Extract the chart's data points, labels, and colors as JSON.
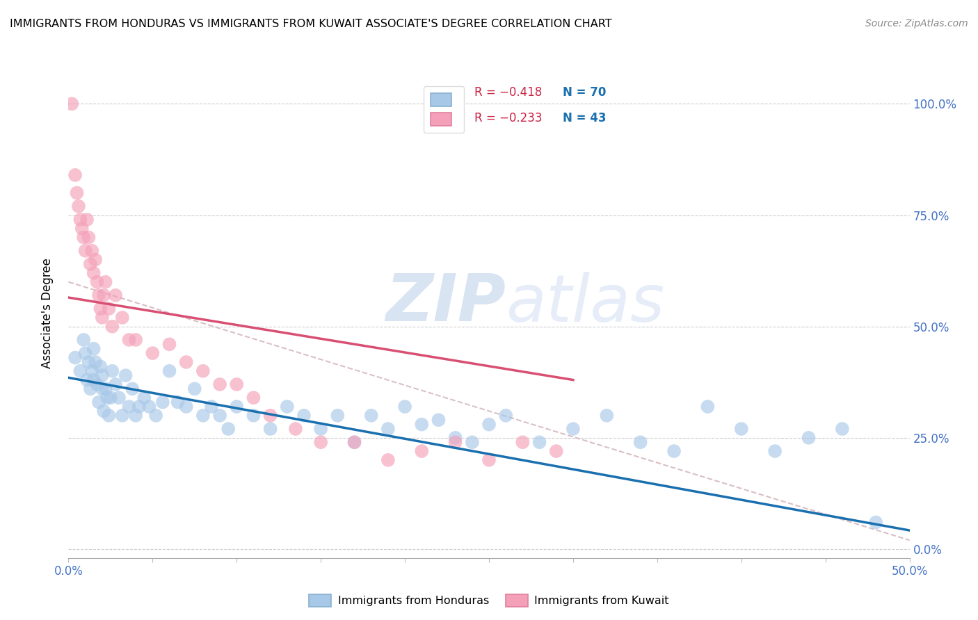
{
  "title": "IMMIGRANTS FROM HONDURAS VS IMMIGRANTS FROM KUWAIT ASSOCIATE'S DEGREE CORRELATION CHART",
  "source": "Source: ZipAtlas.com",
  "ylabel": "Associate's Degree",
  "xlim": [
    0.0,
    0.5
  ],
  "ylim": [
    -0.02,
    1.08
  ],
  "watermark_zip": "ZIP",
  "watermark_atlas": "atlas",
  "honduras_color": "#a8c8e8",
  "kuwait_color": "#f4a0b8",
  "honduras_trend_color": "#1a6faf",
  "kuwait_trend_color": "#d94f72",
  "overall_trend_color": "#d0b0b8",
  "honduras_scatter_x": [
    0.004,
    0.007,
    0.009,
    0.01,
    0.011,
    0.012,
    0.013,
    0.014,
    0.015,
    0.015,
    0.016,
    0.017,
    0.018,
    0.019,
    0.02,
    0.02,
    0.021,
    0.022,
    0.023,
    0.024,
    0.025,
    0.026,
    0.028,
    0.03,
    0.032,
    0.034,
    0.036,
    0.038,
    0.04,
    0.042,
    0.045,
    0.048,
    0.052,
    0.056,
    0.06,
    0.065,
    0.07,
    0.075,
    0.08,
    0.085,
    0.09,
    0.095,
    0.1,
    0.11,
    0.12,
    0.13,
    0.14,
    0.15,
    0.16,
    0.17,
    0.18,
    0.19,
    0.2,
    0.21,
    0.22,
    0.23,
    0.24,
    0.25,
    0.26,
    0.28,
    0.3,
    0.32,
    0.34,
    0.36,
    0.38,
    0.4,
    0.42,
    0.44,
    0.46,
    0.48
  ],
  "honduras_scatter_y": [
    0.43,
    0.4,
    0.47,
    0.44,
    0.38,
    0.42,
    0.36,
    0.4,
    0.45,
    0.38,
    0.42,
    0.37,
    0.33,
    0.41,
    0.36,
    0.39,
    0.31,
    0.36,
    0.34,
    0.3,
    0.34,
    0.4,
    0.37,
    0.34,
    0.3,
    0.39,
    0.32,
    0.36,
    0.3,
    0.32,
    0.34,
    0.32,
    0.3,
    0.33,
    0.4,
    0.33,
    0.32,
    0.36,
    0.3,
    0.32,
    0.3,
    0.27,
    0.32,
    0.3,
    0.27,
    0.32,
    0.3,
    0.27,
    0.3,
    0.24,
    0.3,
    0.27,
    0.32,
    0.28,
    0.29,
    0.25,
    0.24,
    0.28,
    0.3,
    0.24,
    0.27,
    0.3,
    0.24,
    0.22,
    0.32,
    0.27,
    0.22,
    0.25,
    0.27,
    0.06
  ],
  "kuwait_scatter_x": [
    0.002,
    0.004,
    0.005,
    0.006,
    0.007,
    0.008,
    0.009,
    0.01,
    0.011,
    0.012,
    0.013,
    0.014,
    0.015,
    0.016,
    0.017,
    0.018,
    0.019,
    0.02,
    0.021,
    0.022,
    0.024,
    0.026,
    0.028,
    0.032,
    0.036,
    0.04,
    0.05,
    0.06,
    0.07,
    0.08,
    0.09,
    0.1,
    0.11,
    0.12,
    0.135,
    0.15,
    0.17,
    0.19,
    0.21,
    0.23,
    0.25,
    0.27,
    0.29
  ],
  "kuwait_scatter_y": [
    1.0,
    0.84,
    0.8,
    0.77,
    0.74,
    0.72,
    0.7,
    0.67,
    0.74,
    0.7,
    0.64,
    0.67,
    0.62,
    0.65,
    0.6,
    0.57,
    0.54,
    0.52,
    0.57,
    0.6,
    0.54,
    0.5,
    0.57,
    0.52,
    0.47,
    0.47,
    0.44,
    0.46,
    0.42,
    0.4,
    0.37,
    0.37,
    0.34,
    0.3,
    0.27,
    0.24,
    0.24,
    0.2,
    0.22,
    0.24,
    0.2,
    0.24,
    0.22
  ],
  "honduras_trend_x": [
    0.0,
    0.5
  ],
  "honduras_trend_y": [
    0.385,
    0.042
  ],
  "kuwait_trend_x": [
    0.0,
    0.3
  ],
  "kuwait_trend_y": [
    0.565,
    0.38
  ],
  "overall_trend_x": [
    0.0,
    0.5
  ],
  "overall_trend_y": [
    0.6,
    0.02
  ],
  "legend_r1": "R = −0.418",
  "legend_n1": "N = 70",
  "legend_r2": "R = −0.233",
  "legend_n2": "N = 43",
  "r1_color": "#cc0000",
  "r2_color": "#cc0000",
  "n1_color": "#1a6faf",
  "n2_color": "#1a6faf"
}
